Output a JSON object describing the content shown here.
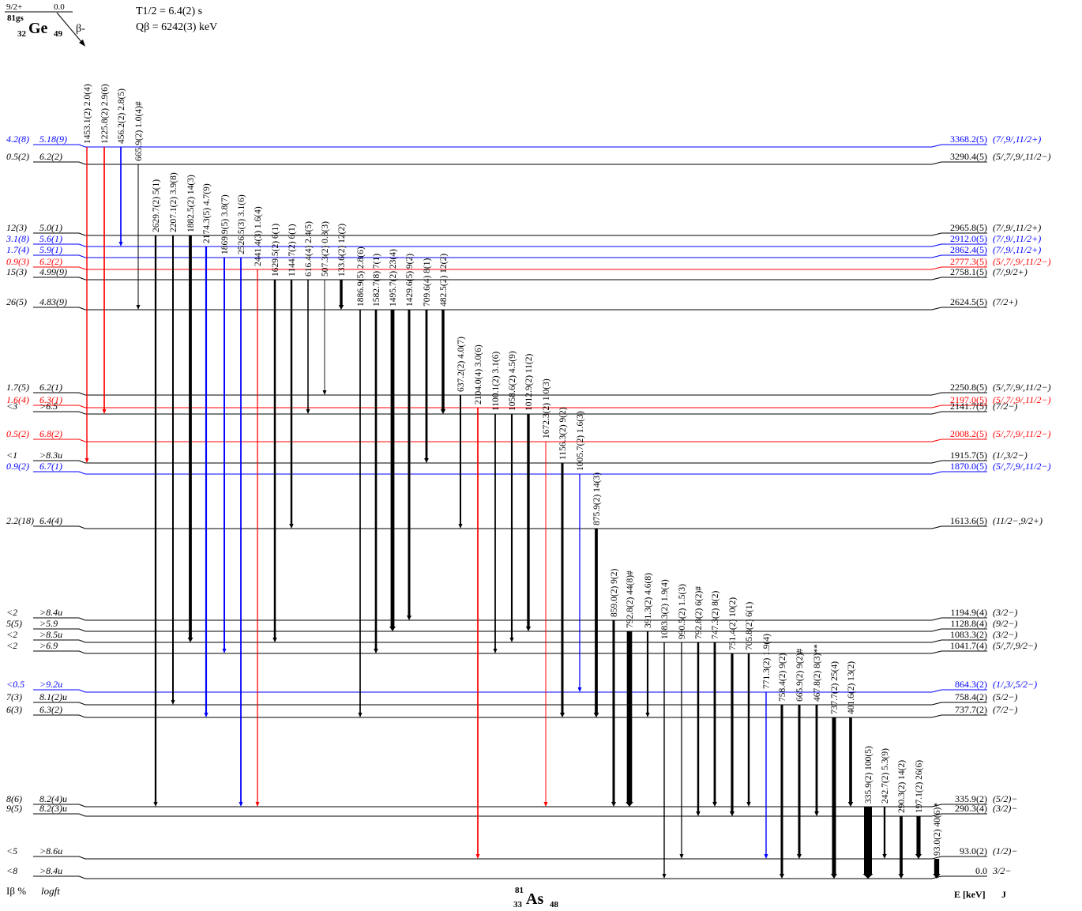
{
  "colors": {
    "black": "#000000",
    "blue": "#0000ff",
    "red": "#ff0000"
  },
  "parent": {
    "spin": "9/2+",
    "level": "0.0",
    "mass": "81gs",
    "symbol": "Ge",
    "z": "32",
    "n": "49",
    "decay": "β-",
    "halflife": "T1/2 = 6.4(2) s",
    "qvalue": "Qβ = 6242(3) keV"
  },
  "daughter": {
    "mass": "81",
    "z": "33",
    "symbol": "As",
    "n": "48"
  },
  "headers": {
    "ib": "Iβ %",
    "logft": "logft",
    "energy": "E [keV]",
    "spin": "J"
  },
  "levels": [
    {
      "e": "3368.2(5)",
      "j": "(7/,9/,11/2+)",
      "ib": "4.2(8)",
      "logft": "5.18(9)",
      "color": "blue"
    },
    {
      "e": "3290.4(5)",
      "j": "(5/,7/,9/,11/2−)",
      "ib": "0.5(2)",
      "logft": "6.2(2)",
      "color": "black"
    },
    {
      "e": "2965.8(5)",
      "j": "(7/,9/,11/2+)",
      "ib": "12(3)",
      "logft": "5.0(1)",
      "color": "black"
    },
    {
      "e": "2912.0(5)",
      "j": "(7/,9/,11/2+)",
      "ib": "3.1(8)",
      "logft": "5.6(1)",
      "color": "blue"
    },
    {
      "e": "2862.4(5)",
      "j": "(7/,9/,11/2+)",
      "ib": "1.7(4)",
      "logft": "5.9(1)",
      "color": "blue"
    },
    {
      "e": "2777.3(5)",
      "j": "(5/,7/,9/,11/2−)",
      "ib": "0.9(3)",
      "logft": "6.2(2)",
      "color": "red"
    },
    {
      "e": "2758.1(5)",
      "j": "(7/,9/2+)",
      "ib": "15(3)",
      "logft": "4.99(9)",
      "color": "black"
    },
    {
      "e": "2624.5(5)",
      "j": "(7/2+)",
      "ib": "26(5)",
      "logft": "4.83(9)",
      "color": "black"
    },
    {
      "e": "2250.8(5)",
      "j": "(5/,7/,9/,11/2−)",
      "ib": "1.7(5)",
      "logft": "6.2(1)",
      "color": "black"
    },
    {
      "e": "2197.0(5)",
      "j": "(5/,7/,9/,11/2−)",
      "ib": "1.6(4)",
      "logft": "6.3(1)",
      "color": "red"
    },
    {
      "e": "2141.7(5)",
      "j": "(7/2−)",
      "ib": "<3",
      "logft": ">6.5",
      "color": "black"
    },
    {
      "e": "2008.2(5)",
      "j": "(5/,7/,9/,11/2−)",
      "ib": "0.5(2)",
      "logft": "6.8(2)",
      "color": "red"
    },
    {
      "e": "1915.7(5)",
      "j": "(1/,3/2−)",
      "ib": "<1",
      "logft": ">8.3u",
      "color": "black"
    },
    {
      "e": "1870.0(5)",
      "j": "(5/,7/,9/,11/2−)",
      "ib": "0.9(2)",
      "logft": "6.7(1)",
      "color": "blue"
    },
    {
      "e": "1613.6(5)",
      "j": "(11/2−,9/2+)",
      "ib": "2.2(18)",
      "logft": "6.4(4)",
      "color": "black"
    },
    {
      "e": "1194.9(4)",
      "j": "(3/2−)",
      "ib": "<2",
      "logft": ">8.4u",
      "color": "black"
    },
    {
      "e": "1128.8(4)",
      "j": "(9/2−)",
      "ib": "5(5)",
      "logft": ">5.9",
      "color": "black"
    },
    {
      "e": "1083.3(2)",
      "j": "(3/2−)",
      "ib": "<2",
      "logft": ">8.5u",
      "color": "black"
    },
    {
      "e": "1041.7(4)",
      "j": "(5/,7/,9/2−)",
      "ib": "<2",
      "logft": ">6.9",
      "color": "black"
    },
    {
      "e": "864.3(2)",
      "j": "(1/,3/,5/2−)",
      "ib": "<0.5",
      "logft": ">9.2u",
      "color": "blue"
    },
    {
      "e": "758.4(2)",
      "j": "(5/2−)",
      "ib": "7(3)",
      "logft": "8.1(2)u",
      "color": "black"
    },
    {
      "e": "737.7(2)",
      "j": "(7/2−)",
      "ib": "6(3)",
      "logft": "6.3(2)",
      "color": "black"
    },
    {
      "e": "335.9(2)",
      "j": "(5/2)−",
      "ib": "8(6)",
      "logft": "8.2(4)u",
      "color": "black"
    },
    {
      "e": "290.3(4)",
      "j": "(3/2)−",
      "ib": "9(5)",
      "logft": "8.2(3)u",
      "color": "black"
    },
    {
      "e": "93.0(2)",
      "j": "(1/2)−",
      "ib": "<5",
      "logft": ">8.6u",
      "color": "black"
    },
    {
      "e": "0.0",
      "j": "3/2−",
      "ib": "<8",
      "logft": ">8.4u",
      "color": "black"
    }
  ],
  "transitions": [
    {
      "from": 0,
      "to": 12,
      "label": "1453.1(2) 2.0(4)",
      "color": "red",
      "intensity": 2.0
    },
    {
      "from": 0,
      "to": 10,
      "label": "1225.8(2) 2.9(6)",
      "color": "red",
      "intensity": 2.9
    },
    {
      "from": 0,
      "to": 3,
      "label": "456.2(2) 2.8(5)",
      "color": "blue",
      "intensity": 2.8
    },
    {
      "from": 1,
      "to": 7,
      "label": "665.9(2) 1.0(4)#",
      "color": "black",
      "intensity": 1.0
    },
    {
      "from": 2,
      "to": 22,
      "label": "2629.7(2) 5(1)",
      "color": "black",
      "intensity": 5
    },
    {
      "from": 2,
      "to": 20,
      "label": "2207.1(2) 3.9(8)",
      "color": "black",
      "intensity": 3.9
    },
    {
      "from": 2,
      "to": 17,
      "label": "1882.5(2) 14(3)",
      "color": "black",
      "intensity": 14
    },
    {
      "from": 3,
      "to": 21,
      "label": "2174.3(5) 4.7(9)",
      "color": "blue",
      "intensity": 4.7
    },
    {
      "from": 4,
      "to": 18,
      "label": "1869.9(5) 3.8(7)",
      "color": "blue",
      "intensity": 3.8
    },
    {
      "from": 4,
      "to": 22,
      "label": "2526.5(3) 3.1(6)",
      "color": "blue",
      "intensity": 3.1
    },
    {
      "from": 5,
      "to": 22,
      "label": "2441.4(3) 1.6(4)",
      "color": "red",
      "intensity": 1.6
    },
    {
      "from": 6,
      "to": 17,
      "label": "1629.5(2) 6(1)",
      "color": "black",
      "intensity": 6
    },
    {
      "from": 6,
      "to": 14,
      "label": "1144.7(2) 6(1)",
      "color": "black",
      "intensity": 6
    },
    {
      "from": 6,
      "to": 10,
      "label": "616.4(4) 2.4(5)",
      "color": "black",
      "intensity": 2.4
    },
    {
      "from": 6,
      "to": 8,
      "label": "507.3(2) 0.8(3)",
      "color": "black",
      "intensity": 0.8
    },
    {
      "from": 6,
      "to": 7,
      "label": "133.6(2) 12(2)",
      "color": "black",
      "intensity": 12
    },
    {
      "from": 7,
      "to": 21,
      "label": "1886.9(5) 2.8(6)",
      "color": "black",
      "intensity": 2.8
    },
    {
      "from": 7,
      "to": 18,
      "label": "1582.7(8) 7(1)",
      "color": "black",
      "intensity": 7
    },
    {
      "from": 7,
      "to": 16,
      "label": "1495.7(2) 23(4)",
      "color": "black",
      "intensity": 23
    },
    {
      "from": 7,
      "to": 15,
      "label": "1429.6(5) 9(2)",
      "color": "black",
      "intensity": 9
    },
    {
      "from": 7,
      "to": 12,
      "label": "709.6(4) 8(1)",
      "color": "black",
      "intensity": 8
    },
    {
      "from": 7,
      "to": 10,
      "label": "482.5(2) 12(2)",
      "color": "black",
      "intensity": 12
    },
    {
      "from": 8,
      "to": 14,
      "label": "637.2(2) 4.0(7)",
      "color": "black",
      "intensity": 4.0
    },
    {
      "from": 9,
      "to": 24,
      "label": "2104.0(4) 3.0(6)",
      "color": "red",
      "intensity": 3.0
    },
    {
      "from": 10,
      "to": 18,
      "label": "1100.1(2) 3.1(6)",
      "color": "black",
      "intensity": 3.1
    },
    {
      "from": 10,
      "to": 17,
      "label": "1058.6(2) 4.5(9)",
      "color": "black",
      "intensity": 4.5
    },
    {
      "from": 10,
      "to": 16,
      "label": "1012.9(2) 11(2)",
      "color": "black",
      "intensity": 11
    },
    {
      "from": 11,
      "to": 22,
      "label": "1672.3(2) 1.0(3)",
      "color": "red",
      "intensity": 1.0
    },
    {
      "from": 12,
      "to": 21,
      "label": "1156.3(2) 9(2)",
      "color": "black",
      "intensity": 9
    },
    {
      "from": 13,
      "to": 19,
      "label": "1005.7(2) 1.6(3)",
      "color": "blue",
      "intensity": 1.6
    },
    {
      "from": 14,
      "to": 21,
      "label": "875.9(2) 14(3)",
      "color": "black",
      "intensity": 14
    },
    {
      "from": 15,
      "to": 22,
      "label": "859.0(2) 9(2)",
      "color": "black",
      "intensity": 9
    },
    {
      "from": 16,
      "to": 22,
      "label": "792.8(2) 44(8)#",
      "color": "black",
      "intensity": 44
    },
    {
      "from": 16,
      "to": 21,
      "label": "391.3(2) 4.6(8)",
      "color": "black",
      "intensity": 4.6
    },
    {
      "from": 17,
      "to": 25,
      "label": "1083.3(2) 1.9(4)",
      "color": "black",
      "intensity": 1.9
    },
    {
      "from": 17,
      "to": 24,
      "label": "990.5(2) 1.5(3)",
      "color": "black",
      "intensity": 1.5
    },
    {
      "from": 17,
      "to": 23,
      "label": "792.8(2) 6(2)#",
      "color": "black",
      "intensity": 6
    },
    {
      "from": 17,
      "to": 22,
      "label": "747.3(2) 8(2)",
      "color": "black",
      "intensity": 8
    },
    {
      "from": 18,
      "to": 23,
      "label": "751.4(2) 10(2)",
      "color": "black",
      "intensity": 10
    },
    {
      "from": 18,
      "to": 22,
      "label": "705.8(2) 6(1)",
      "color": "black",
      "intensity": 6
    },
    {
      "from": 19,
      "to": 24,
      "label": "771.3(2) 1.9(4)",
      "color": "blue",
      "intensity": 1.9
    },
    {
      "from": 20,
      "to": 25,
      "label": "758.4(2) 9(2)",
      "color": "black",
      "intensity": 9
    },
    {
      "from": 20,
      "to": 24,
      "label": "665.9(2) 9(2)#",
      "color": "black",
      "intensity": 9
    },
    {
      "from": 20,
      "to": 23,
      "label": "467.8(2) 8(3)**",
      "color": "black",
      "intensity": 8
    },
    {
      "from": 21,
      "to": 25,
      "label": "737.7(2) 25(4)",
      "color": "black",
      "intensity": 25
    },
    {
      "from": 21,
      "to": 22,
      "label": "401.6(2) 13(2)",
      "color": "black",
      "intensity": 13
    },
    {
      "from": 22,
      "to": 25,
      "label": "335.9(2) 100(5)",
      "color": "black",
      "intensity": 100
    },
    {
      "from": 22,
      "to": 24,
      "label": "242.7(2) 5.3(9)",
      "color": "black",
      "intensity": 5.3
    },
    {
      "from": 23,
      "to": 25,
      "label": "290.3(2) 14(2)",
      "color": "black",
      "intensity": 14
    },
    {
      "from": 23,
      "to": 24,
      "label": "197.1(2) 26(6)",
      "color": "black",
      "intensity": 26
    },
    {
      "from": 24,
      "to": 25,
      "label": "93.0(2) 40(6)*",
      "color": "black",
      "intensity": 40
    }
  ]
}
